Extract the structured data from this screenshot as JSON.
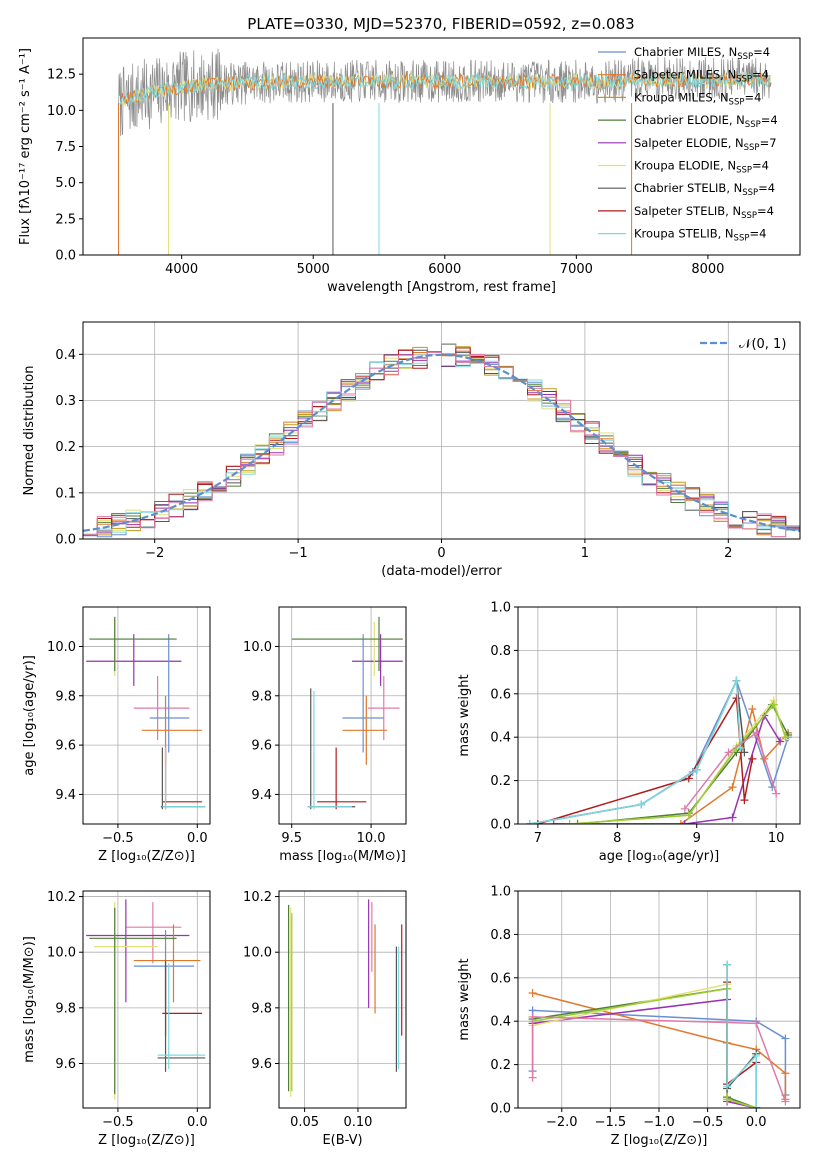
{
  "title": "PLATE=0330, MJD=52370, FIBERID=0592, z=0.083",
  "colors": {
    "Chabrier MILES": "#6a8fd4",
    "Salpeter MILES": "#e0782c",
    "Kroupa MILES": "#c49a1a",
    "Chabrier ELODIE": "#4f7d3a",
    "Salpeter ELODIE": "#9932b5",
    "Kroupa ELODIE": "#e3e07a",
    "Chabrier STELIB": "#555555",
    "Salpeter STELIB": "#b01c1c",
    "Kroupa STELIB": "#7fd9e0",
    "pinkish": "#e07aa8",
    "limegreen": "#9acd32",
    "gauss": "#5b8fd0"
  },
  "chart_data": [
    {
      "type": "line",
      "id": "spectrum",
      "xlabel": "wavelength [Angstrom, rest frame]",
      "ylabel": "Flux [fλ10⁻¹⁷ erg cm⁻² s⁻¹ A⁻¹]",
      "xlim": [
        3250,
        8700
      ],
      "ylim": [
        0,
        15
      ],
      "xticks": [
        "4000",
        "5000",
        "6000",
        "7000",
        "8000"
      ],
      "yticks": [
        "0.0",
        "2.5",
        "5.0",
        "7.5",
        "10.0",
        "12.5"
      ],
      "data_range": [
        3520,
        8480
      ],
      "continuum_level": 12.0,
      "legend_position": "upper right",
      "series": [
        {
          "name": "Chabrier MILES, N",
          "sub": "SSP",
          "tail": "=4"
        },
        {
          "name": "Salpeter MILES, N",
          "sub": "SSP",
          "tail": "=4"
        },
        {
          "name": "Kroupa MILES, N",
          "sub": "SSP",
          "tail": "=4"
        },
        {
          "name": "Chabrier ELODIE, N",
          "sub": "SSP",
          "tail": "=4"
        },
        {
          "name": "Salpeter ELODIE, N",
          "sub": "SSP",
          "tail": "=7"
        },
        {
          "name": "Kroupa ELODIE, N",
          "sub": "SSP",
          "tail": "=4"
        },
        {
          "name": "Chabrier STELIB, N",
          "sub": "SSP",
          "tail": "=4"
        },
        {
          "name": "Salpeter STELIB, N",
          "sub": "SSP",
          "tail": "=4"
        },
        {
          "name": "Kroupa STELIB, N",
          "sub": "SSP",
          "tail": "=4"
        }
      ]
    },
    {
      "type": "histogram",
      "id": "residuals",
      "xlabel": "(data-model)/error",
      "ylabel": "Normed distribution",
      "xlim": [
        -2.5,
        2.5
      ],
      "ylim": [
        0,
        0.47
      ],
      "xticks": [
        "−2",
        "−1",
        "0",
        "1",
        "2"
      ],
      "yticks": [
        "0.0",
        "0.1",
        "0.2",
        "0.3",
        "0.4"
      ],
      "bin_width": 0.1,
      "gaussian_legend": "𝒩(0, 1)",
      "legend_position": "upper right"
    },
    {
      "type": "scatter",
      "id": "age-vs-Z",
      "xlabel": "Z [log₁₀(Z/Z⊙)]",
      "ylabel": "age  [log₁₀(age/yr)]",
      "xlim": [
        -0.72,
        0.08
      ],
      "ylim": [
        9.28,
        10.16
      ],
      "xticks": [
        "−0.5",
        "0.0"
      ],
      "yticks": [
        "9.4",
        "9.6",
        "9.8",
        "10.0"
      ],
      "points": [
        {
          "c": "pinkish",
          "x": -0.25,
          "y": 9.75,
          "x0": -0.4,
          "x1": -0.05,
          "y0": 9.62,
          "y1": 9.88
        },
        {
          "c": "Salpeter ELODIE",
          "x": -0.4,
          "y": 9.94,
          "x0": -0.7,
          "x1": -0.1,
          "y0": 9.84,
          "y1": 10.05
        },
        {
          "c": "Chabrier MILES",
          "x": -0.18,
          "y": 9.71,
          "x0": -0.3,
          "x1": -0.05,
          "y0": 9.57,
          "y1": 10.05
        },
        {
          "c": "Salpeter MILES",
          "x": -0.2,
          "y": 9.66,
          "x0": -0.35,
          "x1": 0.03,
          "y0": 9.52,
          "y1": 9.8
        },
        {
          "c": "Kroupa ELODIE",
          "x": -0.52,
          "y": 10.03,
          "x0": -0.68,
          "x1": -0.15,
          "y0": 9.88,
          "y1": 10.11
        },
        {
          "c": "Chabrier ELODIE",
          "x": -0.52,
          "y": 10.03,
          "x0": -0.68,
          "x1": -0.13,
          "y0": 9.9,
          "y1": 10.12
        },
        {
          "c": "Salpeter STELIB",
          "x": -0.2,
          "y": 9.37,
          "x0": -0.22,
          "x1": 0.03,
          "y0": 9.34,
          "y1": 9.59
        },
        {
          "c": "Chabrier STELIB",
          "x": -0.22,
          "y": 9.35,
          "x0": -0.23,
          "x1": 0.05,
          "y0": 9.34,
          "y1": 9.59
        },
        {
          "c": "Kroupa STELIB",
          "x": -0.2,
          "y": 9.35,
          "x0": -0.22,
          "x1": 0.05,
          "y0": 9.34,
          "y1": 9.59
        }
      ]
    },
    {
      "type": "scatter",
      "id": "age-vs-mass",
      "xlabel": "mass [log₁₀(M/M⊙)]",
      "xlim": [
        9.42,
        10.22
      ],
      "ylim": [
        9.28,
        10.16
      ],
      "xticks": [
        "9.5",
        "10.0"
      ],
      "yticks": [
        "9.4",
        "9.6",
        "9.8",
        "10.0"
      ],
      "points": [
        {
          "c": "pinkish",
          "x": 10.08,
          "y": 9.75,
          "x0": 9.98,
          "x1": 10.18,
          "y0": 9.62,
          "y1": 9.88
        },
        {
          "c": "Salpeter ELODIE",
          "x": 10.06,
          "y": 9.94,
          "x0": 9.88,
          "x1": 10.2,
          "y0": 9.84,
          "y1": 10.05
        },
        {
          "c": "Chabrier MILES",
          "x": 9.95,
          "y": 9.71,
          "x0": 9.82,
          "x1": 10.08,
          "y0": 9.57,
          "y1": 10.05
        },
        {
          "c": "Salpeter MILES",
          "x": 9.97,
          "y": 9.66,
          "x0": 9.82,
          "x1": 10.1,
          "y0": 9.52,
          "y1": 9.8
        },
        {
          "c": "Kroupa ELODIE",
          "x": 10.02,
          "y": 10.03,
          "x0": 9.5,
          "x1": 10.2,
          "y0": 9.88,
          "y1": 10.1
        },
        {
          "c": "Chabrier ELODIE",
          "x": 10.05,
          "y": 10.03,
          "x0": 9.5,
          "x1": 10.2,
          "y0": 9.9,
          "y1": 10.12
        },
        {
          "c": "Salpeter STELIB",
          "x": 9.78,
          "y": 9.37,
          "x0": 9.66,
          "x1": 9.97,
          "y0": 9.34,
          "y1": 9.59
        },
        {
          "c": "Chabrier STELIB",
          "x": 9.62,
          "y": 9.35,
          "x0": 9.6,
          "x1": 9.9,
          "y0": 9.34,
          "y1": 9.83
        },
        {
          "c": "Kroupa STELIB",
          "x": 9.64,
          "y": 9.35,
          "x0": 9.6,
          "x1": 9.88,
          "y0": 9.34,
          "y1": 9.82
        }
      ]
    },
    {
      "type": "line",
      "id": "mass-weight-vs-age",
      "xlabel": "age  [log₁₀(age/yr)]",
      "ylabel": "mass weight",
      "xlim": [
        6.75,
        10.3
      ],
      "ylim": [
        0,
        1
      ],
      "xticks": [
        "7",
        "8",
        "9",
        "10"
      ],
      "yticks": [
        "0.0",
        "0.2",
        "0.4",
        "0.6",
        "0.8",
        "1.0"
      ],
      "series": [
        {
          "c": "Chabrier MILES",
          "x": [
            6.9,
            8.3,
            8.95,
            9.5,
            9.95,
            10.15
          ],
          "y": [
            0.0,
            0.09,
            0.24,
            0.66,
            0.17,
            0.4
          ]
        },
        {
          "c": "Salpeter MILES",
          "x": [
            7.0,
            8.8,
            9.45,
            9.7,
            9.85,
            10.15
          ],
          "y": [
            0.0,
            0.0,
            0.17,
            0.53,
            0.3,
            0.42
          ]
        },
        {
          "c": "Chabrier ELODIE",
          "x": [
            7.5,
            8.9,
            9.5,
            9.95,
            10.15
          ],
          "y": [
            0.0,
            0.05,
            0.33,
            0.55,
            0.41
          ]
        },
        {
          "c": "Salpeter ELODIE",
          "x": [
            7.2,
            8.85,
            9.45,
            9.85,
            10.05
          ],
          "y": [
            0.0,
            0.0,
            0.03,
            0.5,
            0.38
          ]
        },
        {
          "c": "Kroupa ELODIE",
          "x": [
            7.4,
            8.9,
            9.5,
            9.97,
            10.12
          ],
          "y": [
            0.0,
            0.04,
            0.36,
            0.57,
            0.39
          ]
        },
        {
          "c": "limegreen",
          "x": [
            7.4,
            8.9,
            9.5,
            9.97,
            10.12
          ],
          "y": [
            0.0,
            0.04,
            0.35,
            0.55,
            0.4
          ]
        },
        {
          "c": "Chabrier STELIB",
          "x": [
            6.9,
            8.3,
            9.0,
            9.5,
            9.6
          ],
          "y": [
            0.0,
            0.09,
            0.25,
            0.66,
            0.33
          ]
        },
        {
          "c": "Salpeter STELIB",
          "x": [
            7.0,
            8.9,
            9.5,
            9.6,
            9.7
          ],
          "y": [
            0.0,
            0.21,
            0.58,
            0.11,
            0.3
          ]
        },
        {
          "c": "Kroupa STELIB",
          "x": [
            6.9,
            8.3,
            9.0,
            9.5,
            9.55
          ],
          "y": [
            0.0,
            0.09,
            0.25,
            0.66,
            0.35
          ]
        },
        {
          "c": "pinkish",
          "x": [
            8.85,
            9.4,
            9.75,
            10.0
          ],
          "y": [
            0.07,
            0.33,
            0.42,
            0.14
          ]
        }
      ]
    },
    {
      "type": "scatter",
      "id": "mass-vs-Z",
      "xlabel": "Z [log₁₀(Z/Z⊙)]",
      "ylabel": "mass [log₁₀(M/M⊙)]",
      "xlim": [
        -0.72,
        0.08
      ],
      "ylim": [
        9.44,
        10.22
      ],
      "xticks": [
        "−0.5",
        "0.0"
      ],
      "yticks": [
        "9.6",
        "9.8",
        "10.0",
        "10.2"
      ],
      "points": [
        {
          "c": "pinkish",
          "x": -0.28,
          "y": 10.09,
          "x0": -0.45,
          "x1": -0.1,
          "y0": 9.96,
          "y1": 10.18
        },
        {
          "c": "Salpeter ELODIE",
          "x": -0.45,
          "y": 10.06,
          "x0": -0.7,
          "x1": -0.05,
          "y0": 9.82,
          "y1": 10.19
        },
        {
          "c": "Chabrier MILES",
          "x": -0.2,
          "y": 9.95,
          "x0": -0.4,
          "x1": -0.02,
          "y0": 9.8,
          "y1": 10.08
        },
        {
          "c": "Salpeter MILES",
          "x": -0.15,
          "y": 9.97,
          "x0": -0.4,
          "x1": 0.02,
          "y0": 9.82,
          "y1": 10.1
        },
        {
          "c": "Kroupa ELODIE",
          "x": -0.52,
          "y": 10.02,
          "x0": -0.65,
          "x1": -0.25,
          "y0": 9.47,
          "y1": 10.18
        },
        {
          "c": "Chabrier ELODIE",
          "x": -0.52,
          "y": 10.05,
          "x0": -0.68,
          "x1": -0.13,
          "y0": 9.49,
          "y1": 10.16
        },
        {
          "c": "Salpeter STELIB",
          "x": -0.2,
          "y": 9.78,
          "x0": -0.22,
          "x1": 0.03,
          "y0": 9.7,
          "y1": 9.95
        },
        {
          "c": "Chabrier STELIB",
          "x": -0.2,
          "y": 9.62,
          "x0": -0.25,
          "x1": 0.05,
          "y0": 9.57,
          "y1": 9.97
        },
        {
          "c": "Kroupa STELIB",
          "x": -0.18,
          "y": 9.63,
          "x0": -0.25,
          "x1": 0.05,
          "y0": 9.58,
          "y1": 9.96
        }
      ]
    },
    {
      "type": "scatter",
      "id": "mass-vs-EBV",
      "xlabel": "E(B-V)",
      "xlim": [
        0.026,
        0.145
      ],
      "ylim": [
        9.44,
        10.22
      ],
      "xticks": [
        "0.05",
        "0.10"
      ],
      "yticks": [
        "9.6",
        "9.8",
        "10.0",
        "10.2"
      ],
      "points": [
        {
          "c": "Chabrier ELODIE",
          "x": 0.035,
          "y": 9.82,
          "y0": 9.5,
          "y1": 10.17
        },
        {
          "c": "Kroupa ELODIE",
          "x": 0.037,
          "y": 9.82,
          "y0": 9.48,
          "y1": 10.16
        },
        {
          "c": "limegreen",
          "x": 0.038,
          "y": 9.82,
          "y0": 9.5,
          "y1": 10.14
        },
        {
          "c": "Salpeter ELODIE",
          "x": 0.11,
          "y": 10.0,
          "y0": 9.8,
          "y1": 10.19
        },
        {
          "c": "pinkish",
          "x": 0.113,
          "y": 10.05,
          "y0": 9.93,
          "y1": 10.18
        },
        {
          "c": "Salpeter MILES",
          "x": 0.116,
          "y": 9.95,
          "y0": 9.78,
          "y1": 10.1
        },
        {
          "c": "Chabrier STELIB",
          "x": 0.136,
          "y": 9.78,
          "y0": 9.57,
          "y1": 10.02
        },
        {
          "c": "Kroupa STELIB",
          "x": 0.138,
          "y": 9.78,
          "y0": 9.58,
          "y1": 10.02
        },
        {
          "c": "Salpeter STELIB",
          "x": 0.141,
          "y": 9.9,
          "y0": 9.7,
          "y1": 10.1
        }
      ]
    },
    {
      "type": "line",
      "id": "mass-weight-vs-Z",
      "xlabel": "Z [log₁₀(Z/Z⊙)]",
      "ylabel": "mass weight",
      "xlim": [
        -2.45,
        0.45
      ],
      "ylim": [
        0,
        1
      ],
      "xticks": [
        "−2.0",
        "−1.5",
        "−1.0",
        "−0.5",
        "0.0"
      ],
      "yticks": [
        "0.0",
        "0.2",
        "0.4",
        "0.6",
        "0.8",
        "1.0"
      ],
      "series": [
        {
          "c": "Chabrier MILES",
          "x": [
            -2.3,
            -2.3,
            0.0,
            0.3,
            0.3
          ],
          "y": [
            0.17,
            0.45,
            0.4,
            0.32,
            0.06
          ]
        },
        {
          "c": "Salpeter MILES",
          "x": [
            -2.3,
            -0.3,
            0.0,
            0.3,
            0.3
          ],
          "y": [
            0.53,
            0.3,
            0.27,
            0.16,
            0.04
          ]
        },
        {
          "c": "Chabrier ELODIE",
          "x": [
            -2.3,
            -0.3,
            -0.3,
            0.0
          ],
          "y": [
            0.41,
            0.55,
            0.05,
            0.0
          ]
        },
        {
          "c": "Salpeter ELODIE",
          "x": [
            -2.3,
            -0.3,
            -0.3,
            0.0
          ],
          "y": [
            0.39,
            0.5,
            0.03,
            0.0
          ]
        },
        {
          "c": "Kroupa ELODIE",
          "x": [
            -2.3,
            -0.3,
            -0.3,
            0.0
          ],
          "y": [
            0.38,
            0.57,
            0.04,
            0.0
          ]
        },
        {
          "c": "limegreen",
          "x": [
            -2.3,
            -0.3,
            -0.3,
            0.0
          ],
          "y": [
            0.4,
            0.55,
            0.04,
            0.0
          ]
        },
        {
          "c": "pinkish",
          "x": [
            -2.3,
            -2.3,
            0.0,
            0.3
          ],
          "y": [
            0.14,
            0.42,
            0.39,
            0.03
          ]
        },
        {
          "c": "Salpeter STELIB",
          "x": [
            -0.3,
            -0.3,
            0.0,
            0.0
          ],
          "y": [
            0.58,
            0.11,
            0.21,
            0.0
          ]
        },
        {
          "c": "Chabrier STELIB",
          "x": [
            -0.3,
            -0.3,
            0.0,
            0.0
          ],
          "y": [
            0.66,
            0.09,
            0.25,
            0.0
          ]
        },
        {
          "c": "Kroupa STELIB",
          "x": [
            -0.3,
            -0.3,
            0.0,
            0.0
          ],
          "y": [
            0.66,
            0.1,
            0.24,
            0.0
          ]
        }
      ]
    }
  ]
}
